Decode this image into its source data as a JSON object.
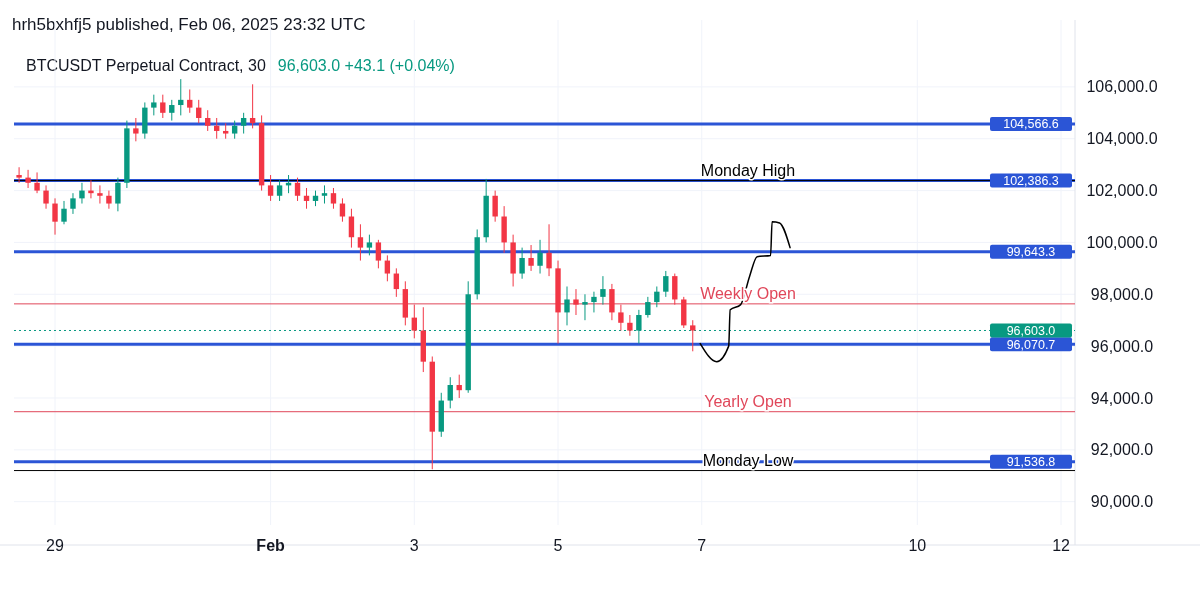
{
  "chart_data": {
    "type": "candlestick",
    "title": "BTCUSDT Perpetual Contract, 30",
    "subtitle": "96,603.0 +43.1 (+0.04%)",
    "annotations": [
      "hrh5bxhfj5 published, Feb 06, 2025 23:32 UTC"
    ],
    "x": [
      "2025-01-28T12:00",
      "2025-01-28T15:00",
      "2025-01-28T18:00",
      "2025-01-28T21:00",
      "2025-01-29T00:00",
      "2025-01-29T03:00",
      "2025-01-29T06:00",
      "2025-01-29T09:00",
      "2025-01-29T12:00",
      "2025-01-29T15:00",
      "2025-01-29T18:00",
      "2025-01-29T21:00",
      "2025-01-30T00:00",
      "2025-01-30T03:00",
      "2025-01-30T06:00",
      "2025-01-30T09:00",
      "2025-01-30T12:00",
      "2025-01-30T15:00",
      "2025-01-30T18:00",
      "2025-01-30T21:00",
      "2025-01-31T00:00",
      "2025-01-31T03:00",
      "2025-01-31T06:00",
      "2025-01-31T09:00",
      "2025-01-31T12:00",
      "2025-01-31T15:00",
      "2025-01-31T18:00",
      "2025-01-31T21:00",
      "2025-02-01T00:00",
      "2025-02-01T03:00",
      "2025-02-01T06:00",
      "2025-02-01T09:00",
      "2025-02-01T12:00",
      "2025-02-01T15:00",
      "2025-02-01T18:00",
      "2025-02-01T21:00",
      "2025-02-02T00:00",
      "2025-02-02T03:00",
      "2025-02-02T06:00",
      "2025-02-02T09:00",
      "2025-02-02T12:00",
      "2025-02-02T15:00",
      "2025-02-02T18:00",
      "2025-02-02T21:00",
      "2025-02-03T00:00",
      "2025-02-03T03:00",
      "2025-02-03T06:00",
      "2025-02-03T09:00",
      "2025-02-03T12:00",
      "2025-02-03T15:00",
      "2025-02-03T18:00",
      "2025-02-03T21:00",
      "2025-02-04T00:00",
      "2025-02-04T03:00",
      "2025-02-04T06:00",
      "2025-02-04T09:00",
      "2025-02-04T12:00",
      "2025-02-04T15:00",
      "2025-02-04T18:00",
      "2025-02-04T21:00",
      "2025-02-05T00:00",
      "2025-02-05T03:00",
      "2025-02-05T06:00",
      "2025-02-05T09:00",
      "2025-02-05T12:00",
      "2025-02-05T15:00",
      "2025-02-05T18:00",
      "2025-02-05T21:00",
      "2025-02-06T00:00",
      "2025-02-06T03:00",
      "2025-02-06T06:00",
      "2025-02-06T09:00",
      "2025-02-06T12:00",
      "2025-02-06T15:00",
      "2025-02-06T18:00",
      "2025-02-06T21:00"
    ],
    "ohlc": [
      [
        102600,
        102900,
        102300,
        102500
      ],
      [
        102500,
        102800,
        102100,
        102300
      ],
      [
        102300,
        102700,
        101900,
        102000
      ],
      [
        102000,
        102200,
        101300,
        101500
      ],
      [
        101500,
        101700,
        100300,
        100800
      ],
      [
        100800,
        101600,
        100700,
        101300
      ],
      [
        101300,
        101900,
        101100,
        101700
      ],
      [
        101700,
        102300,
        101500,
        102000
      ],
      [
        102000,
        102400,
        101700,
        101900
      ],
      [
        101900,
        102200,
        101500,
        101800
      ],
      [
        101800,
        102000,
        101300,
        101500
      ],
      [
        101500,
        102500,
        101200,
        102300
      ],
      [
        102300,
        104700,
        102100,
        104400
      ],
      [
        104400,
        104800,
        103900,
        104200
      ],
      [
        104200,
        105400,
        104000,
        105200
      ],
      [
        105200,
        105700,
        104900,
        105400
      ],
      [
        105400,
        105700,
        104800,
        105000
      ],
      [
        105000,
        105500,
        104700,
        105300
      ],
      [
        105300,
        106300,
        104900,
        105500
      ],
      [
        105500,
        105900,
        105000,
        105200
      ],
      [
        105200,
        105500,
        104600,
        104800
      ],
      [
        104800,
        105100,
        104300,
        104500
      ],
      [
        104500,
        104800,
        104000,
        104300
      ],
      [
        104300,
        104600,
        104000,
        104200
      ],
      [
        104200,
        104700,
        104000,
        104500
      ],
      [
        104500,
        105000,
        104200,
        104800
      ],
      [
        104800,
        106100,
        104400,
        104600
      ],
      [
        104600,
        104900,
        102000,
        102200
      ],
      [
        102200,
        102600,
        101600,
        101800
      ],
      [
        101800,
        102400,
        101600,
        102200
      ],
      [
        102200,
        102600,
        101900,
        102300
      ],
      [
        102300,
        102500,
        101600,
        101800
      ],
      [
        101800,
        102100,
        101300,
        101600
      ],
      [
        101600,
        102000,
        101400,
        101800
      ],
      [
        101800,
        102200,
        101500,
        101900
      ],
      [
        101900,
        102100,
        101300,
        101500
      ],
      [
        101500,
        101700,
        100800,
        101000
      ],
      [
        101000,
        101300,
        99800,
        100200
      ],
      [
        100200,
        100700,
        99300,
        99800
      ],
      [
        99800,
        100300,
        99500,
        100000
      ],
      [
        100000,
        100100,
        99000,
        99300
      ],
      [
        99300,
        99500,
        98500,
        98800
      ],
      [
        98800,
        99000,
        97900,
        98200
      ],
      [
        98200,
        98500,
        96800,
        97100
      ],
      [
        97100,
        97600,
        96300,
        96600
      ],
      [
        96600,
        97500,
        95000,
        95400
      ],
      [
        95400,
        95600,
        91250,
        92700
      ],
      [
        92700,
        94200,
        92500,
        93900
      ],
      [
        93900,
        94800,
        93600,
        94500
      ],
      [
        94500,
        94900,
        94000,
        94300
      ],
      [
        94300,
        98500,
        94200,
        98000
      ],
      [
        98000,
        100500,
        97800,
        100200
      ],
      [
        100200,
        102450,
        100000,
        101800
      ],
      [
        101800,
        102000,
        100800,
        101000
      ],
      [
        101000,
        101400,
        99600,
        100000
      ],
      [
        100000,
        100300,
        98300,
        98800
      ],
      [
        98800,
        99800,
        98600,
        99400
      ],
      [
        99400,
        99900,
        98900,
        99100
      ],
      [
        99100,
        100100,
        98800,
        99600
      ],
      [
        99600,
        100700,
        98700,
        99000
      ],
      [
        99000,
        99300,
        96100,
        97300
      ],
      [
        97300,
        98300,
        96800,
        97800
      ],
      [
        97800,
        98200,
        97200,
        97600
      ],
      [
        97600,
        98000,
        97000,
        97700
      ],
      [
        97700,
        98100,
        97300,
        97900
      ],
      [
        97900,
        98700,
        97600,
        98200
      ],
      [
        98200,
        98400,
        97000,
        97300
      ],
      [
        97300,
        97600,
        96600,
        96900
      ],
      [
        96900,
        97200,
        96400,
        96600
      ],
      [
        96600,
        97400,
        96100,
        97200
      ],
      [
        97200,
        97900,
        97100,
        97700
      ],
      [
        97700,
        98300,
        97500,
        98100
      ],
      [
        98100,
        98900,
        97900,
        98700
      ],
      [
        98700,
        98800,
        97600,
        97800
      ],
      [
        97800,
        97900,
        96700,
        96800
      ],
      [
        96800,
        97000,
        95800,
        96603
      ]
    ],
    "series": [
      {
        "type": "line",
        "color": "#000000",
        "x": [
          "2025-02-06T23:30",
          "2025-02-07T05:00",
          "2025-02-07T09:00",
          "2025-02-07T09:30",
          "2025-02-07T13:00",
          "2025-02-07T16:00",
          "2025-02-07T18:30",
          "2025-02-07T23:00",
          "2025-02-07T23:30",
          "2025-02-08T02:00",
          "2025-02-08T05:30"
        ],
        "values": [
          96100,
          95400,
          96000,
          97400,
          97600,
          98700,
          99450,
          99500,
          100800,
          100750,
          99800
        ]
      }
    ],
    "xlim": [
      "2025-01-28T10:18",
      "2025-02-12T04:40"
    ],
    "xticks": [
      {
        "value": "2025-01-29",
        "label": "29"
      },
      {
        "value": "2025-02-01",
        "label": "Feb"
      },
      {
        "value": "2025-02-03",
        "label": "3"
      },
      {
        "value": "2025-02-05",
        "label": "5"
      },
      {
        "value": "2025-02-07",
        "label": "7"
      },
      {
        "value": "2025-02-10",
        "label": "10"
      },
      {
        "value": "2025-02-12",
        "label": "12"
      }
    ],
    "ylim": [
      89100,
      108580
    ],
    "yticks": [
      {
        "value": 90000,
        "label": "90,000.0"
      },
      {
        "value": 92000,
        "label": "92,000.0"
      },
      {
        "value": 94000,
        "label": "94,000.0"
      },
      {
        "value": 96000,
        "label": "96,000.0"
      },
      {
        "value": 98000,
        "label": "98,000.0"
      },
      {
        "value": 100000,
        "label": "100,000.0"
      },
      {
        "value": 102000,
        "label": "102,000.0"
      },
      {
        "value": 104000,
        "label": "104,000.0"
      },
      {
        "value": 106000,
        "label": "106,000.0"
      }
    ],
    "grid": true,
    "ref_lines": [
      {
        "axis": "y",
        "value": 104566.6,
        "label": "104,566.6",
        "color": "#2b55d6",
        "line_style": "solid"
      },
      {
        "axis": "y",
        "value": 102386.3,
        "label": "102,386.3",
        "color": "#2b55d6",
        "line_style": "solid"
      },
      {
        "axis": "y",
        "value": 99643.3,
        "label": "99,643.3",
        "color": "#2b55d6",
        "line_style": "solid"
      },
      {
        "axis": "y",
        "value": 96070.7,
        "label": "96,070.7",
        "color": "#2b55d6",
        "line_style": "solid"
      },
      {
        "axis": "y",
        "value": 91536.8,
        "label": "91,536.8",
        "color": "#2b55d6",
        "line_style": "solid"
      },
      {
        "axis": "y",
        "value": 96603.0,
        "label": "96,603.0",
        "color": "#089981",
        "line_style": "dotted"
      },
      {
        "axis": "y",
        "value": 102386.3,
        "label": "Monday High",
        "color": "#000000",
        "line_style": "solid"
      },
      {
        "axis": "y",
        "value": 91200,
        "label": "Monday Low",
        "color": "#000000",
        "line_style": "solid"
      },
      {
        "axis": "y",
        "value": 97630,
        "label": "Weekly Open",
        "color": "#e0475a",
        "line_style": "solid"
      },
      {
        "axis": "y",
        "value": 93470,
        "label": "Yearly Open",
        "color": "#e0475a",
        "line_style": "solid"
      }
    ]
  }
}
